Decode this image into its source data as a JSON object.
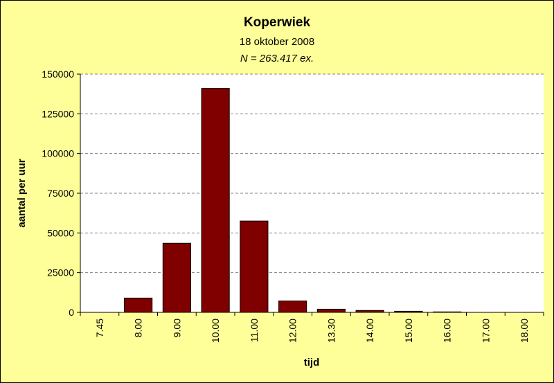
{
  "chart_data": {
    "type": "bar",
    "title": "Koperwiek",
    "subtitle": "18 oktober 2008",
    "note": "N = 263.417 ex.",
    "xlabel": "tijd",
    "ylabel": "aantal per uur",
    "categories": [
      "7.45",
      "8.00",
      "9.00",
      "10.00",
      "11.00",
      "12.00",
      "13.30",
      "14.00",
      "15.00",
      "16.00",
      "17.00",
      "18.00"
    ],
    "values": [
      0,
      9000,
      43500,
      141000,
      57500,
      7200,
      2000,
      1200,
      700,
      300,
      0,
      0
    ],
    "ylim": [
      0,
      150000
    ],
    "yticks": [
      0,
      25000,
      50000,
      75000,
      100000,
      125000,
      150000
    ],
    "grid": true,
    "legend": "none",
    "colors": {
      "bar": "#800000",
      "plot_background": "#ffffff",
      "chart_background": "#ffff99",
      "gridline": "#808080"
    }
  }
}
